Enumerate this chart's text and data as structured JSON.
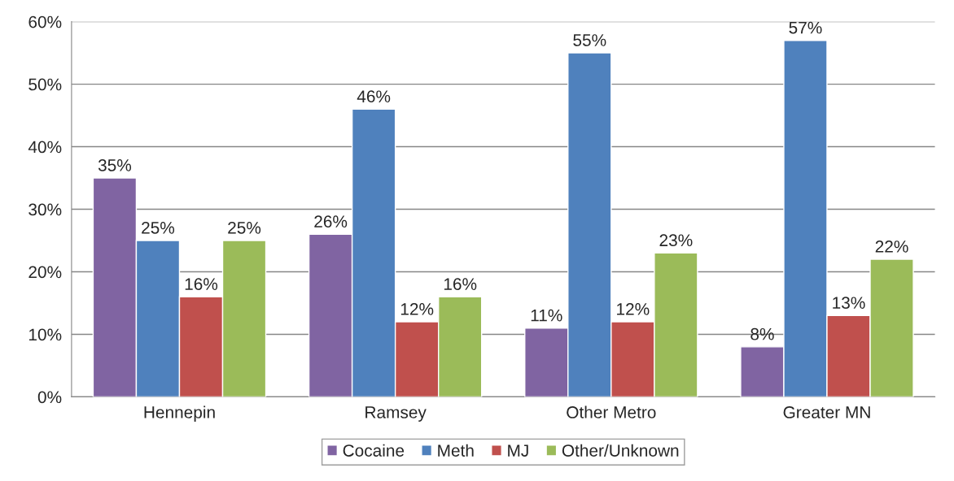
{
  "chart_data": {
    "type": "bar",
    "categories": [
      "Hennepin",
      "Ramsey",
      "Other Metro",
      "Greater MN"
    ],
    "series": [
      {
        "name": "Cocaine",
        "color": "#8064a2",
        "values": [
          35,
          26,
          11,
          8
        ],
        "value_labels": [
          "35%",
          "26%",
          "11%",
          "8%"
        ]
      },
      {
        "name": "Meth",
        "color": "#4f81bd",
        "values": [
          25,
          46,
          55,
          57
        ],
        "value_labels": [
          "25%",
          "46%",
          "55%",
          "57%"
        ]
      },
      {
        "name": "MJ",
        "color": "#c0504d",
        "values": [
          16,
          12,
          12,
          13
        ],
        "value_labels": [
          "16%",
          "12%",
          "12%",
          "13%"
        ]
      },
      {
        "name": "Other/Unknown",
        "color": "#9bbb59",
        "values": [
          25,
          16,
          23,
          22
        ],
        "value_labels": [
          "25%",
          "16%",
          "23%",
          "22%"
        ]
      }
    ],
    "ylim": [
      0,
      60
    ],
    "yticks": [
      {
        "value": 0,
        "label": "0%"
      },
      {
        "value": 10,
        "label": "10%"
      },
      {
        "value": 20,
        "label": "20%"
      },
      {
        "value": 30,
        "label": "30%"
      },
      {
        "value": 40,
        "label": "40%"
      },
      {
        "value": 50,
        "label": "50%"
      },
      {
        "value": 60,
        "label": "60%"
      }
    ],
    "grid": "y",
    "legend": "bottom"
  }
}
